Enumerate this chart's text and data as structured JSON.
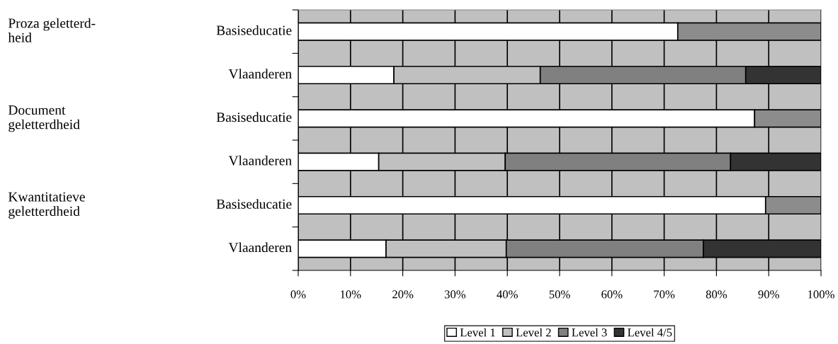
{
  "chart_data": {
    "type": "bar",
    "orientation": "horizontal",
    "stacked": true,
    "categories": [
      "Basiseducatie",
      "Vlaanderen",
      "Basiseducatie",
      "Vlaanderen",
      "Basiseducatie",
      "Vlaanderen"
    ],
    "series": [
      {
        "name": "Level 1",
        "color": "#ffffff",
        "values": [
          72.6,
          18.3,
          87.3,
          15.4,
          89.4,
          16.8
        ]
      },
      {
        "name": "Level 2",
        "color": "#c0c0c0",
        "values": [
          null,
          28.0,
          null,
          24.2,
          null,
          23.0
        ]
      },
      {
        "name": "Level 3",
        "color": "#808080",
        "values": [
          null,
          39.3,
          null,
          43.1,
          null,
          37.7
        ]
      },
      {
        "name": "Level 4/5",
        "color": "#333333",
        "values": [
          null,
          14.4,
          null,
          17.3,
          null,
          22.5
        ]
      },
      {
        "color": "#8c8c8c",
        "values": [
          27.4,
          null,
          12.7,
          null,
          10.6,
          null
        ]
      }
    ],
    "xlim": [
      0,
      100
    ],
    "xticks": [
      {
        "value": 0,
        "label": "0%"
      },
      {
        "value": 10,
        "label": "10%"
      },
      {
        "value": 20,
        "label": "20%"
      },
      {
        "value": 30,
        "label": "30%"
      },
      {
        "value": 40,
        "label": "40%"
      },
      {
        "value": 50,
        "label": "50%"
      },
      {
        "value": 60,
        "label": "60%"
      },
      {
        "value": 70,
        "label": "70%"
      },
      {
        "value": 80,
        "label": "80%"
      },
      {
        "value": 90,
        "label": "90%"
      },
      {
        "value": 100,
        "label": "100%"
      }
    ],
    "grid": "x",
    "legend": "bottom",
    "annotations": [
      "Proza geletterd-\nheid",
      "Document\ngeletterdheid",
      "Kwantitatieve\ngeletterdheid"
    ]
  }
}
